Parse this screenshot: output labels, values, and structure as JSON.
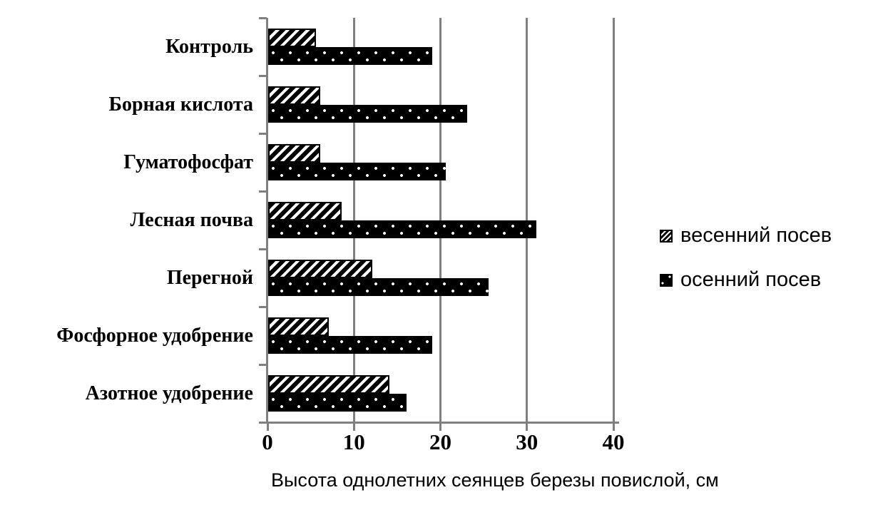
{
  "chart_data": {
    "type": "bar",
    "orientation": "horizontal",
    "title": "",
    "xlabel": "Высота однолетних сеянцев березы повислой, см",
    "ylabel": "",
    "xlim": [
      0,
      40
    ],
    "xticks": [
      0,
      10,
      20,
      30,
      40
    ],
    "grid": "vertical",
    "legend_position": "right",
    "categories": [
      "Контроль",
      "Борная кислота",
      "Гуматофосфат",
      "Лесная почва",
      "Перегной",
      "Фосфорное удобрение",
      "Азотное удобрение"
    ],
    "series": [
      {
        "name": "весенний посев",
        "pattern": "diagonal-hatch",
        "values": [
          5.5,
          6,
          6,
          8.5,
          12,
          7,
          14
        ]
      },
      {
        "name": "осенний посев",
        "pattern": "black-white-dots",
        "values": [
          19,
          23,
          20.5,
          31,
          25.5,
          19,
          16
        ]
      }
    ],
    "colors": {
      "bar": "#000000",
      "grid": "#808080",
      "axis": "#808080",
      "background": "#ffffff",
      "text": "#000000"
    }
  }
}
